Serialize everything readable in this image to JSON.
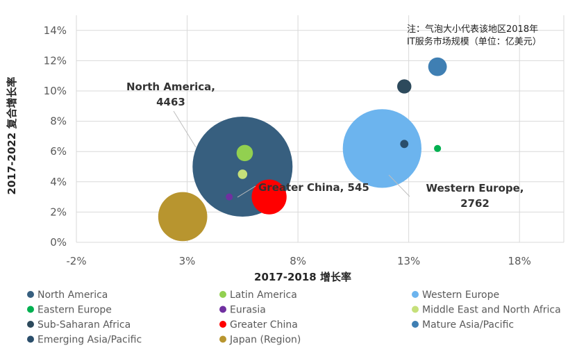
{
  "chart_data": {
    "type": "scatter",
    "variant": "bubble",
    "xlabel": "2017-2018 增长率",
    "ylabel": "2017-2022 复合增长率",
    "xlim": [
      -2,
      20
    ],
    "ylim": [
      0,
      15
    ],
    "x_ticks": [
      -2,
      3,
      8,
      13,
      18
    ],
    "x_tick_labels": [
      "-2%",
      "3%",
      "8%",
      "13%",
      "18%"
    ],
    "y_ticks": [
      0,
      2,
      4,
      6,
      8,
      10,
      12,
      14
    ],
    "y_tick_labels": [
      "0%",
      "2%",
      "4%",
      "6%",
      "8%",
      "10%",
      "12%",
      "14%"
    ],
    "grid": true,
    "legend_position": "bottom",
    "note_lines": [
      "注：气泡大小代表该地区2018年",
      "IT服务市场规模（单位：亿美元）"
    ],
    "series": [
      {
        "name": "North America",
        "x": 5.5,
        "y": 5.0,
        "size": 4463,
        "color": "#375f7f"
      },
      {
        "name": "Latin America",
        "x": 5.6,
        "y": 5.9,
        "size": 120,
        "color": "#92d050"
      },
      {
        "name": "Western Europe",
        "x": 11.8,
        "y": 6.2,
        "size": 2762,
        "color": "#6cb4ee"
      },
      {
        "name": "Eastern Europe",
        "x": 14.3,
        "y": 6.2,
        "size": 22,
        "color": "#00b050"
      },
      {
        "name": "Eurasia",
        "x": 4.9,
        "y": 3.0,
        "size": 8,
        "color": "#7030a0"
      },
      {
        "name": "Middle East and North Africa",
        "x": 5.5,
        "y": 4.5,
        "size": 40,
        "color": "#c6e07a"
      },
      {
        "name": "Sub-Saharan Africa",
        "x": 12.8,
        "y": 10.3,
        "size": 90,
        "color": "#2d4a5c"
      },
      {
        "name": "Greater China",
        "x": 6.7,
        "y": 3.0,
        "size": 545,
        "color": "#ff0000"
      },
      {
        "name": "Mature Asia/Pacific",
        "x": 14.3,
        "y": 11.6,
        "size": 155,
        "color": "#3f7fb3"
      },
      {
        "name": "Emerging Asia/Pacific",
        "x": 12.8,
        "y": 6.5,
        "size": 30,
        "color": "#2b4e6b"
      },
      {
        "name": "Japan (Region)",
        "x": 2.8,
        "y": 1.7,
        "size": 1075,
        "color": "#b8952f"
      }
    ],
    "annotations": [
      {
        "series": "North America",
        "lines": [
          "North America,",
          "4463"
        ]
      },
      {
        "series": "Greater China",
        "lines": [
          "Greater China, 545"
        ]
      },
      {
        "series": "Western Europe",
        "lines": [
          "Western Europe,",
          "2762"
        ]
      }
    ]
  }
}
